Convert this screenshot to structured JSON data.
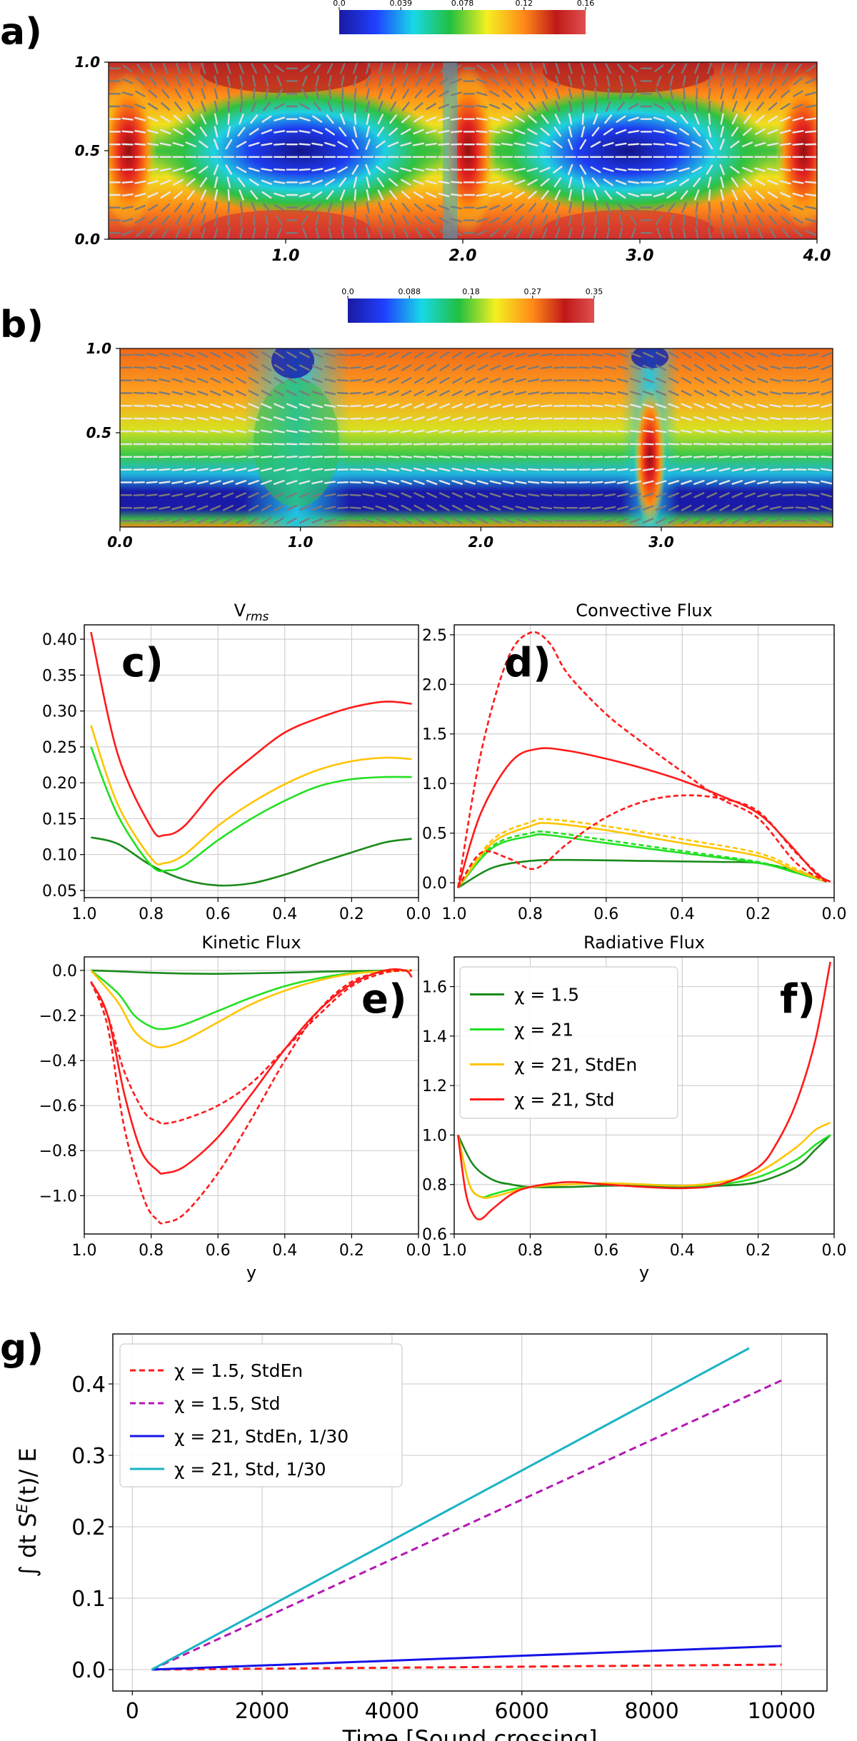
{
  "colors": {
    "dark_green": "#1a8a1a",
    "green": "#22e022",
    "gold": "#ffc400",
    "red": "#ff1a1a",
    "red_dashed": "#ff1a1a",
    "magenta": "#b319b3",
    "blue": "#1414e6",
    "cyan": "#1ab3c4"
  },
  "panel_a": {
    "letter": "a)",
    "colorbar_ticks": [
      "0.0",
      "0.039",
      "0.078",
      "0.12",
      "0.16"
    ],
    "xticks": [
      "1.0",
      "2.0",
      "3.0",
      "4.0"
    ],
    "yticks": [
      "0.0",
      "0.5",
      "1.0"
    ]
  },
  "panel_b": {
    "letter": "b)",
    "colorbar_ticks": [
      "0.0",
      "0.088",
      "0.18",
      "0.27",
      "0.35"
    ],
    "xticks": [
      "0.0",
      "1.0",
      "2.0",
      "3.0"
    ],
    "yticks": [
      "0.5",
      "1.0"
    ]
  },
  "chart_data": [
    {
      "id": "c",
      "letter": "c)",
      "type": "line",
      "title": "V",
      "title_sub": "rms",
      "xlabel": "",
      "xlim": [
        1.0,
        0.0
      ],
      "ylim": [
        0.04,
        0.42
      ],
      "xticks": [
        1.0,
        0.8,
        0.6,
        0.4,
        0.2,
        0.0
      ],
      "xtick_labels": [
        "1.0",
        "0.8",
        "0.6",
        "0.4",
        "0.2",
        "0.0"
      ],
      "yticks": [
        0.05,
        0.1,
        0.15,
        0.2,
        0.25,
        0.3,
        0.35,
        0.4
      ],
      "ytick_labels": [
        "0.05",
        "0.10",
        "0.15",
        "0.20",
        "0.25",
        "0.30",
        "0.35",
        "0.40"
      ],
      "series": [
        {
          "name": "χ = 1.5",
          "color": "#1a8a1a",
          "dash": false,
          "x": [
            0.98,
            0.9,
            0.8,
            0.7,
            0.6,
            0.5,
            0.4,
            0.3,
            0.2,
            0.1,
            0.02
          ],
          "y": [
            0.124,
            0.115,
            0.085,
            0.065,
            0.057,
            0.06,
            0.072,
            0.088,
            0.103,
            0.117,
            0.122
          ]
        },
        {
          "name": "χ = 21",
          "color": "#22e022",
          "dash": false,
          "x": [
            0.98,
            0.9,
            0.8,
            0.75,
            0.7,
            0.6,
            0.5,
            0.4,
            0.3,
            0.2,
            0.1,
            0.02
          ],
          "y": [
            0.25,
            0.155,
            0.085,
            0.078,
            0.085,
            0.12,
            0.15,
            0.175,
            0.195,
            0.205,
            0.208,
            0.208
          ]
        },
        {
          "name": "χ = 21, StdEn",
          "color": "#ffc400",
          "dash": false,
          "x": [
            0.98,
            0.9,
            0.8,
            0.76,
            0.7,
            0.6,
            0.5,
            0.4,
            0.3,
            0.2,
            0.1,
            0.02
          ],
          "y": [
            0.28,
            0.17,
            0.095,
            0.088,
            0.1,
            0.14,
            0.172,
            0.198,
            0.218,
            0.23,
            0.235,
            0.233
          ]
        },
        {
          "name": "χ = 21, Std",
          "color": "#ff1a1a",
          "dash": false,
          "x": [
            0.98,
            0.9,
            0.8,
            0.76,
            0.7,
            0.6,
            0.5,
            0.4,
            0.3,
            0.2,
            0.1,
            0.02
          ],
          "y": [
            0.41,
            0.24,
            0.138,
            0.127,
            0.14,
            0.195,
            0.235,
            0.27,
            0.29,
            0.305,
            0.313,
            0.31
          ]
        }
      ]
    },
    {
      "id": "d",
      "letter": "d)",
      "type": "line",
      "title": "Convective Flux",
      "xlabel": "",
      "xlim": [
        1.0,
        0.0
      ],
      "ylim": [
        -0.15,
        2.6
      ],
      "xticks": [
        1.0,
        0.8,
        0.6,
        0.4,
        0.2,
        0.0
      ],
      "xtick_labels": [
        "1.0",
        "0.8",
        "0.6",
        "0.4",
        "0.2",
        "0.0"
      ],
      "yticks": [
        0.0,
        0.5,
        1.0,
        1.5,
        2.0,
        2.5
      ],
      "ytick_labels": [
        "0.0",
        "0.5",
        "1.0",
        "1.5",
        "2.0",
        "2.5"
      ],
      "series": [
        {
          "name": "χ = 1.5",
          "color": "#1a8a1a",
          "dash": false,
          "x": [
            0.99,
            0.9,
            0.8,
            0.7,
            0.5,
            0.3,
            0.2,
            0.1,
            0.02
          ],
          "y": [
            -0.05,
            0.15,
            0.22,
            0.23,
            0.22,
            0.21,
            0.2,
            0.12,
            0.01
          ]
        },
        {
          "name": "χ = 21",
          "color": "#22e022",
          "dash": false,
          "x": [
            0.99,
            0.9,
            0.8,
            0.75,
            0.6,
            0.4,
            0.2,
            0.1,
            0.02
          ],
          "y": [
            -0.05,
            0.35,
            0.47,
            0.48,
            0.4,
            0.3,
            0.2,
            0.1,
            0.01
          ]
        },
        {
          "name": "χ = 21 (dashed)",
          "color": "#22e022",
          "dash": true,
          "x": [
            0.99,
            0.9,
            0.8,
            0.75,
            0.6,
            0.4,
            0.2,
            0.1,
            0.02
          ],
          "y": [
            -0.05,
            0.37,
            0.5,
            0.51,
            0.43,
            0.32,
            0.21,
            0.11,
            0.01
          ]
        },
        {
          "name": "χ = 21, StdEn",
          "color": "#ffc400",
          "dash": false,
          "x": [
            0.99,
            0.9,
            0.8,
            0.75,
            0.6,
            0.4,
            0.2,
            0.1,
            0.02
          ],
          "y": [
            -0.05,
            0.4,
            0.57,
            0.6,
            0.53,
            0.4,
            0.27,
            0.12,
            0.01
          ]
        },
        {
          "name": "χ = 21, StdEn (dashed)",
          "color": "#ffc400",
          "dash": true,
          "x": [
            0.99,
            0.9,
            0.8,
            0.75,
            0.6,
            0.4,
            0.2,
            0.1,
            0.02
          ],
          "y": [
            -0.05,
            0.43,
            0.61,
            0.64,
            0.57,
            0.44,
            0.3,
            0.14,
            0.01
          ]
        },
        {
          "name": "χ = 21, Std",
          "color": "#ff1a1a",
          "dash": false,
          "x": [
            0.99,
            0.93,
            0.85,
            0.78,
            0.7,
            0.6,
            0.5,
            0.4,
            0.3,
            0.2,
            0.12,
            0.05,
            0.01
          ],
          "y": [
            -0.05,
            0.7,
            1.22,
            1.35,
            1.33,
            1.25,
            1.15,
            1.03,
            0.88,
            0.7,
            0.4,
            0.1,
            0.01
          ]
        },
        {
          "name": "χ = 21, Std (dashed upper)",
          "color": "#ff1a1a",
          "dash": true,
          "x": [
            0.99,
            0.93,
            0.86,
            0.8,
            0.75,
            0.7,
            0.6,
            0.5,
            0.4,
            0.3,
            0.2,
            0.1,
            0.02
          ],
          "y": [
            -0.05,
            1.3,
            2.25,
            2.52,
            2.42,
            2.1,
            1.7,
            1.4,
            1.12,
            0.85,
            0.65,
            0.2,
            0.01
          ]
        },
        {
          "name": "χ = 21, Std (dashed lower)",
          "color": "#ff1a1a",
          "dash": true,
          "x": [
            0.99,
            0.93,
            0.86,
            0.8,
            0.76,
            0.7,
            0.6,
            0.5,
            0.4,
            0.3,
            0.2,
            0.1,
            0.02
          ],
          "y": [
            -0.05,
            0.3,
            0.25,
            0.14,
            0.2,
            0.4,
            0.66,
            0.82,
            0.88,
            0.85,
            0.72,
            0.3,
            0.01
          ]
        }
      ]
    },
    {
      "id": "e",
      "letter": "e)",
      "type": "line",
      "title": "Kinetic Flux",
      "xlabel": "y",
      "xlim": [
        1.0,
        0.0
      ],
      "ylim": [
        -1.17,
        0.06
      ],
      "xticks": [
        1.0,
        0.8,
        0.6,
        0.4,
        0.2,
        0.0
      ],
      "xtick_labels": [
        "1.0",
        "0.8",
        "0.6",
        "0.4",
        "0.2",
        "0.0"
      ],
      "yticks": [
        0.0,
        -0.2,
        -0.4,
        -0.6,
        -0.8,
        -1.0
      ],
      "ytick_labels": [
        "0.0",
        "−0.2",
        "−0.4",
        "−0.6",
        "−0.8",
        "−1.0"
      ],
      "series": [
        {
          "name": "χ = 1.5",
          "color": "#1a8a1a",
          "dash": false,
          "x": [
            0.98,
            0.9,
            0.8,
            0.7,
            0.6,
            0.5,
            0.4,
            0.3,
            0.2,
            0.1,
            0.02
          ],
          "y": [
            0.0,
            -0.004,
            -0.01,
            -0.014,
            -0.015,
            -0.013,
            -0.01,
            -0.006,
            -0.003,
            -0.001,
            0.0
          ]
        },
        {
          "name": "χ = 21",
          "color": "#22e022",
          "dash": false,
          "x": [
            0.98,
            0.9,
            0.85,
            0.8,
            0.76,
            0.7,
            0.6,
            0.5,
            0.4,
            0.3,
            0.2,
            0.1,
            0.02
          ],
          "y": [
            0.0,
            -0.1,
            -0.2,
            -0.25,
            -0.26,
            -0.24,
            -0.18,
            -0.12,
            -0.07,
            -0.035,
            -0.012,
            -0.003,
            0.0
          ]
        },
        {
          "name": "χ = 21, StdEn",
          "color": "#ffc400",
          "dash": false,
          "x": [
            0.98,
            0.9,
            0.85,
            0.8,
            0.76,
            0.7,
            0.6,
            0.5,
            0.4,
            0.3,
            0.2,
            0.1,
            0.02
          ],
          "y": [
            0.0,
            -0.14,
            -0.27,
            -0.33,
            -0.34,
            -0.31,
            -0.23,
            -0.15,
            -0.09,
            -0.045,
            -0.015,
            -0.003,
            0.0
          ]
        },
        {
          "name": "χ = 21, Std",
          "color": "#ff1a1a",
          "dash": false,
          "x": [
            0.98,
            0.93,
            0.88,
            0.83,
            0.78,
            0.76,
            0.7,
            0.6,
            0.5,
            0.4,
            0.3,
            0.2,
            0.1,
            0.04,
            0.02
          ],
          "y": [
            -0.05,
            -0.2,
            -0.55,
            -0.8,
            -0.89,
            -0.9,
            -0.87,
            -0.74,
            -0.55,
            -0.35,
            -0.18,
            -0.06,
            0.0,
            0.0,
            -0.03
          ]
        },
        {
          "name": "χ = 21, Std (dashed lower)",
          "color": "#ff1a1a",
          "dash": true,
          "x": [
            0.98,
            0.93,
            0.88,
            0.82,
            0.78,
            0.76,
            0.7,
            0.6,
            0.5,
            0.4,
            0.3,
            0.2,
            0.1,
            0.02
          ],
          "y": [
            -0.05,
            -0.25,
            -0.7,
            -1.02,
            -1.11,
            -1.12,
            -1.08,
            -0.9,
            -0.66,
            -0.4,
            -0.18,
            -0.05,
            -0.005,
            0.0
          ]
        },
        {
          "name": "χ = 21, Std (dashed upper)",
          "color": "#ff1a1a",
          "dash": true,
          "x": [
            0.98,
            0.93,
            0.88,
            0.82,
            0.78,
            0.76,
            0.7,
            0.6,
            0.5,
            0.4,
            0.3,
            0.2,
            0.1,
            0.02
          ],
          "y": [
            -0.05,
            -0.2,
            -0.45,
            -0.63,
            -0.67,
            -0.68,
            -0.66,
            -0.6,
            -0.5,
            -0.35,
            -0.2,
            -0.07,
            -0.01,
            0.0
          ]
        }
      ]
    },
    {
      "id": "f",
      "letter": "f)",
      "type": "line",
      "title": "Radiative Flux",
      "xlabel": "y",
      "xlim": [
        1.0,
        0.0
      ],
      "ylim": [
        0.6,
        1.72
      ],
      "xticks": [
        1.0,
        0.8,
        0.6,
        0.4,
        0.2,
        0.0
      ],
      "xtick_labels": [
        "1.0",
        "0.8",
        "0.6",
        "0.4",
        "0.2",
        "0.0"
      ],
      "yticks": [
        0.6,
        0.8,
        1.0,
        1.2,
        1.4,
        1.6
      ],
      "ytick_labels": [
        "0.6",
        "0.8",
        "1.0",
        "1.2",
        "1.4",
        "1.6"
      ],
      "legend": [
        "χ = 1.5",
        "χ = 21",
        "χ = 21, StdEn",
        "χ = 21, Std"
      ],
      "series": [
        {
          "name": "χ = 1.5",
          "color": "#1a8a1a",
          "dash": false,
          "x": [
            0.99,
            0.95,
            0.9,
            0.85,
            0.8,
            0.7,
            0.6,
            0.5,
            0.4,
            0.3,
            0.2,
            0.1,
            0.05,
            0.01
          ],
          "y": [
            1.0,
            0.88,
            0.82,
            0.8,
            0.79,
            0.79,
            0.795,
            0.795,
            0.79,
            0.795,
            0.81,
            0.87,
            0.94,
            1.0
          ]
        },
        {
          "name": "χ = 21",
          "color": "#22e022",
          "dash": false,
          "x": [
            0.99,
            0.96,
            0.93,
            0.9,
            0.85,
            0.8,
            0.7,
            0.6,
            0.5,
            0.4,
            0.3,
            0.2,
            0.1,
            0.05,
            0.01
          ],
          "y": [
            1.0,
            0.8,
            0.75,
            0.76,
            0.78,
            0.79,
            0.8,
            0.805,
            0.8,
            0.795,
            0.8,
            0.83,
            0.9,
            0.96,
            1.0
          ]
        },
        {
          "name": "χ = 21, StdEn",
          "color": "#ffc400",
          "dash": false,
          "x": [
            0.99,
            0.96,
            0.93,
            0.9,
            0.85,
            0.8,
            0.7,
            0.6,
            0.5,
            0.4,
            0.3,
            0.2,
            0.1,
            0.05,
            0.01
          ],
          "y": [
            1.0,
            0.8,
            0.75,
            0.75,
            0.77,
            0.79,
            0.8,
            0.805,
            0.8,
            0.795,
            0.81,
            0.85,
            0.95,
            1.02,
            1.05
          ]
        },
        {
          "name": "χ = 21, Std",
          "color": "#ff1a1a",
          "dash": false,
          "x": [
            0.99,
            0.97,
            0.95,
            0.93,
            0.9,
            0.85,
            0.8,
            0.7,
            0.6,
            0.5,
            0.4,
            0.3,
            0.2,
            0.15,
            0.1,
            0.05,
            0.01
          ],
          "y": [
            1.0,
            0.77,
            0.68,
            0.66,
            0.7,
            0.76,
            0.79,
            0.81,
            0.8,
            0.79,
            0.785,
            0.8,
            0.87,
            0.97,
            1.13,
            1.38,
            1.7
          ]
        }
      ]
    },
    {
      "id": "g",
      "letter": "g)",
      "type": "line",
      "title": "",
      "xlabel": "Time [Sound crossing]",
      "ylabel": "∫ dt S",
      "ylabel_sup": "E",
      "ylabel_tail": "(t)/ E",
      "xlim": [
        -300,
        10700
      ],
      "ylim": [
        -0.03,
        0.47
      ],
      "xticks": [
        0,
        2000,
        4000,
        6000,
        8000,
        10000
      ],
      "xtick_labels": [
        "0",
        "2000",
        "4000",
        "6000",
        "8000",
        "10000"
      ],
      "yticks": [
        0.0,
        0.1,
        0.2,
        0.3,
        0.4
      ],
      "ytick_labels": [
        "0.0",
        "0.1",
        "0.2",
        "0.3",
        "0.4"
      ],
      "legend": [
        "χ = 1.5, StdEn",
        "χ = 1.5, Std",
        "χ = 21, StdEn, 1/30",
        "χ = 21, Std, 1/30"
      ],
      "series": [
        {
          "name": "χ = 1.5, StdEn",
          "color": "#ff1a1a",
          "dash": true,
          "x": [
            300,
            10000
          ],
          "y": [
            0.0,
            0.007
          ]
        },
        {
          "name": "χ = 1.5, Std",
          "color": "#b319b3",
          "dash": true,
          "x": [
            300,
            10000
          ],
          "y": [
            0.0,
            0.405
          ]
        },
        {
          "name": "χ = 21, StdEn, 1/30",
          "color": "#1414e6",
          "dash": false,
          "x": [
            300,
            10000
          ],
          "y": [
            0.0,
            0.033
          ]
        },
        {
          "name": "χ = 21, Std, 1/30",
          "color": "#1ab3c4",
          "dash": false,
          "x": [
            300,
            9500
          ],
          "y": [
            0.0,
            0.45
          ]
        }
      ]
    }
  ]
}
